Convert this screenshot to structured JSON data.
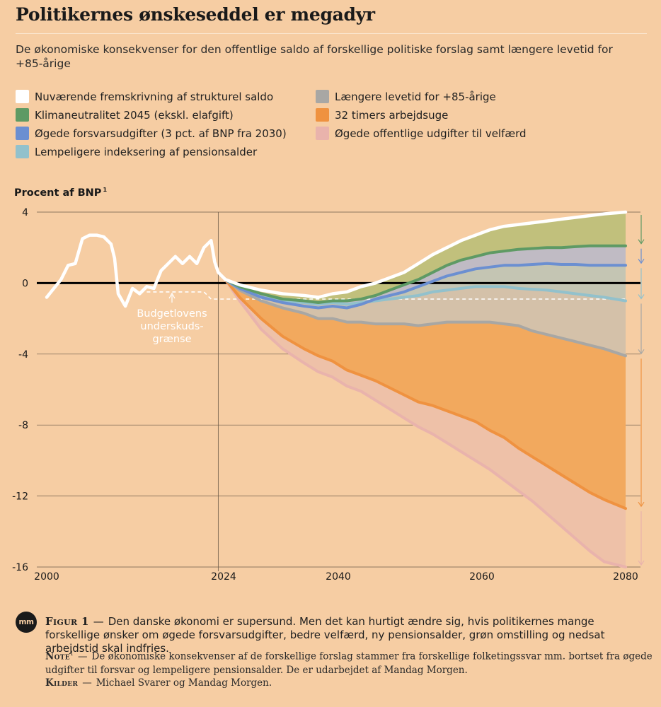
{
  "header": {
    "title": "Politikernes ønskeseddel er megadyr",
    "subtitle": "De økonomiske konsekvenser for den offentlige saldo af forskellige politiske forslag samt længere levetid for +85-årige"
  },
  "legend": [
    {
      "label": "Nuværende fremskrivning af strukturel saldo",
      "color": "#ffffff"
    },
    {
      "label": "Klimaneutralitet 2045 (ekskl. elafgift)",
      "color": "#5e9a64"
    },
    {
      "label": "Øgede forsvarsudgifter (3 pct. af BNP fra 2030)",
      "color": "#6b8fd1"
    },
    {
      "label": "Lempeligere indeksering af pensionsalder",
      "color": "#92c1cc"
    },
    {
      "label": "Længere levetid for +85-årige",
      "color": "#a8a7a4"
    },
    {
      "label": "32 timers arbejdsuge",
      "color": "#ef9240"
    },
    {
      "label": "Øgede offentlige udgifter til velfærd",
      "color": "#e9b3ac"
    }
  ],
  "chart_data": {
    "type": "area",
    "ylabel": "Procent af BNP",
    "ylabel_note": "1",
    "ylim": [
      -16,
      4
    ],
    "yticks": [
      "4",
      "0",
      "-4",
      "-8",
      "-12",
      "-16"
    ],
    "xlim": [
      2000,
      2081
    ],
    "xticks": [
      "2000",
      "2024",
      "2040",
      "2060",
      "2080"
    ],
    "annotation": {
      "text": [
        "Budgetlovens",
        "underskuds-",
        "grænse"
      ]
    },
    "deficit_limit": [
      [
        2014,
        -0.5
      ],
      [
        2022,
        -0.5
      ],
      [
        2023,
        -0.9
      ],
      [
        2081,
        -0.9
      ]
    ],
    "historical": [
      [
        2000,
        -0.8
      ],
      [
        2001,
        -0.3
      ],
      [
        2002,
        0.2
      ],
      [
        2003,
        1.0
      ],
      [
        2004,
        1.1
      ],
      [
        2005,
        2.5
      ],
      [
        2006,
        2.7
      ],
      [
        2007,
        2.7
      ],
      [
        2008,
        2.6
      ],
      [
        2009,
        2.2
      ],
      [
        2009.5,
        1.4
      ],
      [
        2010,
        -0.6
      ],
      [
        2011,
        -1.3
      ],
      [
        2012,
        -0.3
      ],
      [
        2013,
        -0.6
      ],
      [
        2014,
        -0.2
      ],
      [
        2015,
        -0.3
      ],
      [
        2016,
        0.7
      ],
      [
        2017,
        1.1
      ],
      [
        2018,
        1.5
      ],
      [
        2019,
        1.1
      ],
      [
        2020,
        1.5
      ],
      [
        2021,
        1.1
      ],
      [
        2022,
        2.0
      ],
      [
        2023,
        2.4
      ],
      [
        2023.5,
        1.2
      ],
      [
        2024,
        0.6
      ],
      [
        2025,
        0.2
      ]
    ],
    "x": [
      2025,
      2027,
      2030,
      2033,
      2036,
      2038,
      2040,
      2042,
      2044,
      2046,
      2048,
      2050,
      2052,
      2054,
      2056,
      2058,
      2060,
      2062,
      2064,
      2066,
      2068,
      2070,
      2072,
      2074,
      2076,
      2078,
      2081
    ],
    "series": [
      {
        "name": "Nuværende fremskrivning af strukturel saldo",
        "values": [
          0.2,
          -0.1,
          -0.4,
          -0.6,
          -0.7,
          -0.8,
          -0.6,
          -0.5,
          -0.2,
          0.0,
          0.3,
          0.6,
          1.1,
          1.6,
          2.0,
          2.4,
          2.7,
          3.0,
          3.2,
          3.3,
          3.4,
          3.5,
          3.6,
          3.7,
          3.8,
          3.9,
          4.0
        ]
      },
      {
        "name": "Klimaneutralitet 2045 (ekskl. elafgift)",
        "values": [
          0.2,
          -0.2,
          -0.6,
          -0.9,
          -1.0,
          -1.1,
          -1.0,
          -1.0,
          -0.9,
          -0.7,
          -0.4,
          -0.1,
          0.2,
          0.6,
          1.0,
          1.3,
          1.5,
          1.7,
          1.8,
          1.9,
          1.95,
          2.0,
          2.0,
          2.05,
          2.1,
          2.1,
          2.1
        ]
      },
      {
        "name": "Øgede forsvarsudgifter (3 pct. af BNP fra 2030)",
        "values": [
          0.2,
          -0.3,
          -0.8,
          -1.1,
          -1.3,
          -1.4,
          -1.3,
          -1.4,
          -1.2,
          -0.9,
          -0.7,
          -0.5,
          -0.2,
          0.1,
          0.4,
          0.6,
          0.8,
          0.9,
          1.0,
          1.0,
          1.05,
          1.1,
          1.05,
          1.05,
          1.0,
          1.0,
          1.0
        ]
      },
      {
        "name": "Lempeligere indeksering af pensionsalder",
        "values": [
          0.2,
          -0.3,
          -0.8,
          -1.0,
          -1.1,
          -1.2,
          -1.1,
          -1.2,
          -1.1,
          -1.0,
          -0.9,
          -0.8,
          -0.7,
          -0.5,
          -0.4,
          -0.3,
          -0.2,
          -0.2,
          -0.2,
          -0.3,
          -0.35,
          -0.4,
          -0.5,
          -0.6,
          -0.7,
          -0.8,
          -1.0
        ]
      },
      {
        "name": "Længere levetid for +85-årige",
        "values": [
          0.2,
          -0.4,
          -1.0,
          -1.4,
          -1.7,
          -2.0,
          -2.0,
          -2.2,
          -2.2,
          -2.3,
          -2.3,
          -2.3,
          -2.4,
          -2.3,
          -2.2,
          -2.2,
          -2.2,
          -2.2,
          -2.3,
          -2.4,
          -2.7,
          -2.9,
          -3.1,
          -3.3,
          -3.5,
          -3.7,
          -4.1
        ]
      },
      {
        "name": "32 timers arbejdsuge",
        "values": [
          0.2,
          -0.8,
          -2.0,
          -3.0,
          -3.7,
          -4.1,
          -4.4,
          -4.9,
          -5.2,
          -5.5,
          -5.9,
          -6.3,
          -6.7,
          -6.9,
          -7.2,
          -7.5,
          -7.8,
          -8.3,
          -8.7,
          -9.3,
          -9.8,
          -10.3,
          -10.8,
          -11.3,
          -11.8,
          -12.2,
          -12.7
        ]
      },
      {
        "name": "Øgede offentlige udgifter til velfærd",
        "values": [
          0.2,
          -1.0,
          -2.6,
          -3.7,
          -4.5,
          -5.0,
          -5.3,
          -5.8,
          -6.1,
          -6.6,
          -7.1,
          -7.6,
          -8.1,
          -8.5,
          -9.0,
          -9.5,
          -10.0,
          -10.5,
          -11.1,
          -11.7,
          -12.3,
          -13.0,
          -13.7,
          -14.4,
          -15.1,
          -15.7,
          -16.0
        ]
      }
    ]
  },
  "caption": {
    "logo": "mm",
    "figure_label": "Figur 1",
    "figure_text": "Den danske økonomi er supersund. Men det kan hurtigt ændre sig, hvis politikernes mange forskellige ønsker om øgede forsvarsudgifter, bedre velfærd, ny pensionsalder, grøn omstilling og nedsat arbejdstid skal indfries.",
    "note_label": "Note",
    "note_mark": "1",
    "note_text": "De økonomiske konsekvenser af de forskellige forslag stammer fra forskellige folketingssvar mm. bortset fra øgede udgifter til forsvar og lempeligere pensionsalder. De er udarbejdet af Mandag Morgen.",
    "sources_label": "Kilder",
    "sources_text": "Michael Svarer og Mandag Morgen."
  }
}
